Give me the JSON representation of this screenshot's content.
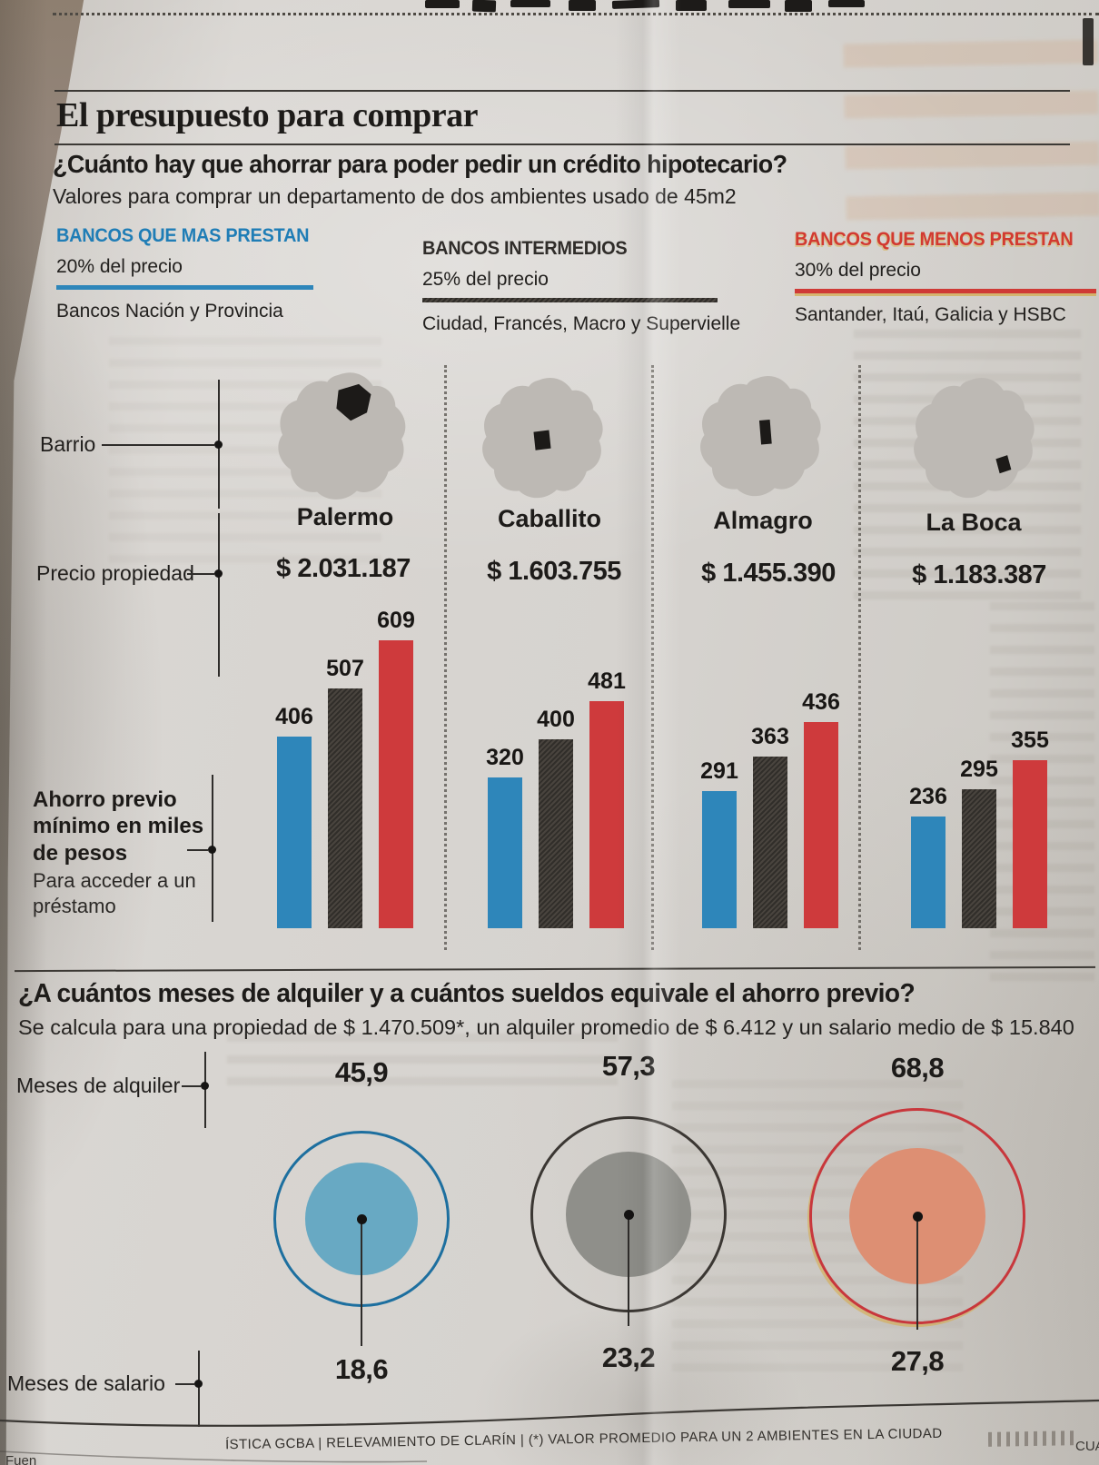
{
  "header": {
    "kicker": "El presupuesto para comprar",
    "title": "¿Cuánto hay que ahorrar para poder pedir un crédito hipotecario?",
    "subtitle": "Valores para comprar un departamento de dos ambientes usado de 45m2"
  },
  "banks": [
    {
      "label": "BANCOS QUE MAS PRESTAN",
      "pct": "20% del precio",
      "names": "Bancos Nación y Provincia",
      "color": "#1f7db6"
    },
    {
      "label": "BANCOS INTERMEDIOS",
      "pct": "25% del precio",
      "names": "Ciudad, Francés, Macro y Supervielle",
      "color": "#302d2a"
    },
    {
      "label": "BANCOS QUE MENOS PRESTAN",
      "pct": "30% del precio",
      "names": "Santander, Itaú, Galicia y HSBC",
      "color": "#d23a31"
    }
  ],
  "labels": {
    "barrio": "Barrio",
    "precio_propiedad": "Precio propiedad",
    "ahorro_titulo": "Ahorro previo mínimo en miles de pesos",
    "ahorro_nota": "Para acceder a un préstamo",
    "meses_alquiler": "Meses de alquiler",
    "meses_salario": "Meses de salario"
  },
  "section2": {
    "title": "¿A cuántos meses de alquiler y a cuántos sueldos equivale el ahorro previo?",
    "subtitle": "Se calcula para una propiedad de $ 1.470.509*, un alquiler promedio de $ 6.412 y un salario medio de $ 15.840"
  },
  "footer": {
    "source": "ÍSTICA GCBA | RELEVAMIENTO DE CLARÍN  | (*) VALOR PROMEDIO PARA UN 2 AMBIENTES EN LA CIUDAD",
    "right_fragment": "CUA",
    "left_fragment": "Fuen"
  },
  "chart_data": [
    {
      "type": "bar",
      "title": "Ahorro previo mínimo en miles de pesos",
      "subtitle": "Para acceder a un préstamo",
      "unit": "miles de pesos",
      "categories": [
        "Palermo",
        "Caballito",
        "Almagro",
        "La Boca"
      ],
      "property_prices": [
        "$ 2.031.187",
        "$ 1.603.755",
        "$ 1.455.390",
        "$ 1.183.387"
      ],
      "series": [
        {
          "name": "Bancos que más prestan (20% del precio)",
          "color": "#2e86ba",
          "values": [
            406,
            320,
            291,
            236
          ]
        },
        {
          "name": "Bancos intermedios (25% del precio)",
          "color": "#3b3733",
          "values": [
            507,
            400,
            363,
            295
          ]
        },
        {
          "name": "Bancos que menos prestan (30% del precio)",
          "color": "#ce3a3c",
          "values": [
            609,
            481,
            436,
            355
          ]
        }
      ],
      "ylim": [
        0,
        650
      ],
      "grid": false,
      "legend_position": "column-headers-top"
    },
    {
      "type": "bubble",
      "title": "¿A cuántos meses de alquiler y a cuántos sueldos equivale el ahorro previo?",
      "outer_metric": "Meses de alquiler",
      "inner_metric": "Meses de salario",
      "groups": [
        {
          "bank_group": "Bancos que más prestan (20%)",
          "meses_alquiler": 45.9,
          "meses_salario": 18.6,
          "alquiler_label": "45,9",
          "salario_label": "18,6",
          "outer_color": "#1d6f9f",
          "inner_color": "#68a9c3"
        },
        {
          "bank_group": "Bancos intermedios (25%)",
          "meses_alquiler": 57.3,
          "meses_salario": 23.2,
          "alquiler_label": "57,3",
          "salario_label": "23,2",
          "outer_color": "#3b3733",
          "inner_color": "#8f8f8a"
        },
        {
          "bank_group": "Bancos que menos prestan (30%)",
          "meses_alquiler": 68.8,
          "meses_salario": 27.8,
          "alquiler_label": "68,8",
          "salario_label": "27,8",
          "outer_color": "#c8373c",
          "inner_color": "#dd8f73"
        }
      ]
    }
  ]
}
